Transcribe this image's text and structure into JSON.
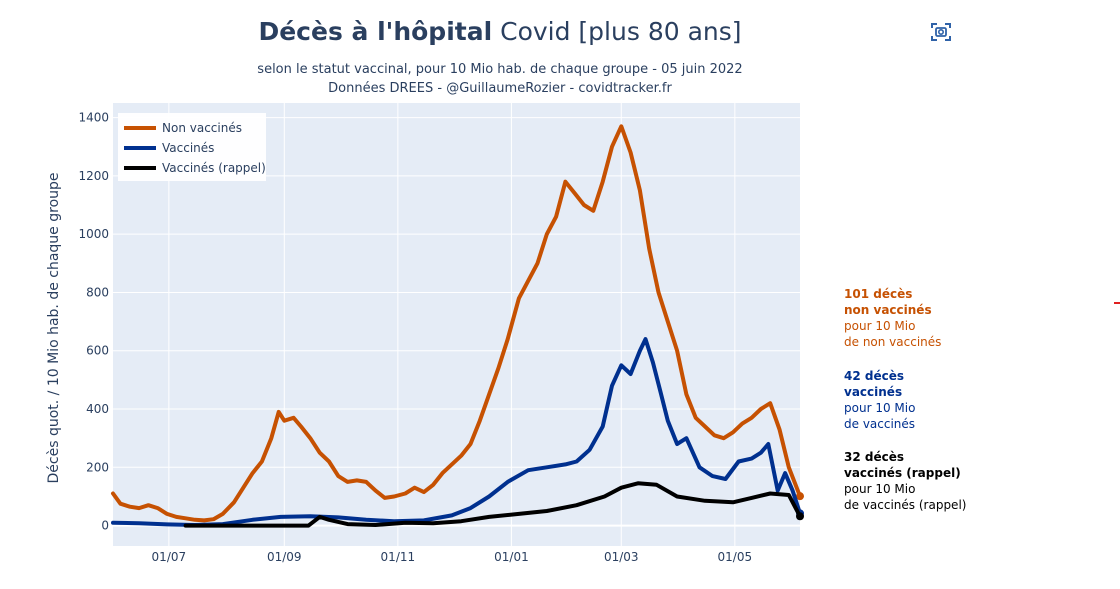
{
  "header": {
    "title_bold": "Décès à l'hôpital",
    "title_rest": "Covid [plus 80 ans]",
    "subtitle_line1": "selon le statut vaccinal, pour 10 Mio hab. de chaque groupe - 05 juin 2022",
    "subtitle_line2": "Données DREES - @GuillaumeRozier - covidtracker.fr"
  },
  "toolbar": {
    "camera_icon": "camera-icon"
  },
  "annotations": [
    {
      "line1": "101 décès",
      "line2": "non vaccinés",
      "line3": "pour 10 Mio",
      "line4": "de non vaccinés",
      "color": "#c65102"
    },
    {
      "line1": "42 décès",
      "line2": "vaccinés",
      "line3": "pour 10 Mio",
      "line4": "de vaccinés",
      "color": "#00308f"
    },
    {
      "line1": "32 décès",
      "line2": "vaccinés (rappel)",
      "line3": "pour 10 Mio",
      "line4": "de vaccinés (rappel)",
      "color": "#000000"
    }
  ],
  "chart_data": {
    "type": "line",
    "ylabel": "Décès quot. / 10 Mio hab. de chaque groupe",
    "xlabel": "",
    "x_range": [
      "2021-06-01",
      "2022-06-05"
    ],
    "ylim": [
      -70,
      1450
    ],
    "y_ticks": [
      0,
      200,
      400,
      600,
      800,
      1000,
      1200,
      1400
    ],
    "x_ticks": [
      {
        "date": "2021-07-01",
        "label": "01/07"
      },
      {
        "date": "2021-09-01",
        "label": "01/09"
      },
      {
        "date": "2021-11-01",
        "label": "01/11"
      },
      {
        "date": "2022-01-01",
        "label": "01/01"
      },
      {
        "date": "2022-03-01",
        "label": "01/03"
      },
      {
        "date": "2022-05-01",
        "label": "01/05"
      }
    ],
    "grid": true,
    "legend_position": "top-left",
    "series": [
      {
        "name": "Non vaccinés",
        "color": "#c65102",
        "points": [
          [
            "2021-06-01",
            110
          ],
          [
            "2021-06-05",
            75
          ],
          [
            "2021-06-10",
            65
          ],
          [
            "2021-06-15",
            60
          ],
          [
            "2021-06-20",
            70
          ],
          [
            "2021-06-25",
            60
          ],
          [
            "2021-06-30",
            40
          ],
          [
            "2021-07-05",
            30
          ],
          [
            "2021-07-10",
            25
          ],
          [
            "2021-07-15",
            20
          ],
          [
            "2021-07-20",
            18
          ],
          [
            "2021-07-25",
            22
          ],
          [
            "2021-07-30",
            40
          ],
          [
            "2021-08-05",
            80
          ],
          [
            "2021-08-10",
            130
          ],
          [
            "2021-08-15",
            180
          ],
          [
            "2021-08-20",
            220
          ],
          [
            "2021-08-25",
            300
          ],
          [
            "2021-08-29",
            390
          ],
          [
            "2021-09-01",
            360
          ],
          [
            "2021-09-06",
            370
          ],
          [
            "2021-09-10",
            340
          ],
          [
            "2021-09-15",
            300
          ],
          [
            "2021-09-20",
            250
          ],
          [
            "2021-09-25",
            220
          ],
          [
            "2021-09-30",
            170
          ],
          [
            "2021-10-05",
            150
          ],
          [
            "2021-10-10",
            155
          ],
          [
            "2021-10-15",
            150
          ],
          [
            "2021-10-20",
            120
          ],
          [
            "2021-10-25",
            95
          ],
          [
            "2021-10-30",
            100
          ],
          [
            "2021-11-05",
            110
          ],
          [
            "2021-11-10",
            130
          ],
          [
            "2021-11-15",
            115
          ],
          [
            "2021-11-20",
            140
          ],
          [
            "2021-11-25",
            180
          ],
          [
            "2021-11-30",
            210
          ],
          [
            "2021-12-05",
            240
          ],
          [
            "2021-12-10",
            280
          ],
          [
            "2021-12-15",
            360
          ],
          [
            "2021-12-20",
            450
          ],
          [
            "2021-12-25",
            540
          ],
          [
            "2021-12-30",
            640
          ],
          [
            "2022-01-05",
            780
          ],
          [
            "2022-01-10",
            840
          ],
          [
            "2022-01-15",
            900
          ],
          [
            "2022-01-20",
            1000
          ],
          [
            "2022-01-25",
            1060
          ],
          [
            "2022-01-30",
            1180
          ],
          [
            "2022-02-04",
            1140
          ],
          [
            "2022-02-09",
            1100
          ],
          [
            "2022-02-14",
            1080
          ],
          [
            "2022-02-19",
            1180
          ],
          [
            "2022-02-24",
            1300
          ],
          [
            "2022-03-01",
            1370
          ],
          [
            "2022-03-06",
            1280
          ],
          [
            "2022-03-11",
            1150
          ],
          [
            "2022-03-16",
            950
          ],
          [
            "2022-03-21",
            800
          ],
          [
            "2022-03-26",
            700
          ],
          [
            "2022-03-31",
            600
          ],
          [
            "2022-04-05",
            450
          ],
          [
            "2022-04-10",
            370
          ],
          [
            "2022-04-15",
            340
          ],
          [
            "2022-04-20",
            310
          ],
          [
            "2022-04-25",
            300
          ],
          [
            "2022-04-30",
            320
          ],
          [
            "2022-05-05",
            350
          ],
          [
            "2022-05-10",
            370
          ],
          [
            "2022-05-15",
            400
          ],
          [
            "2022-05-20",
            420
          ],
          [
            "2022-05-25",
            330
          ],
          [
            "2022-05-30",
            200
          ],
          [
            "2022-06-05",
            101
          ]
        ]
      },
      {
        "name": "Vaccinés",
        "color": "#00308f",
        "points": [
          [
            "2021-06-01",
            10
          ],
          [
            "2021-06-15",
            8
          ],
          [
            "2021-06-30",
            4
          ],
          [
            "2021-07-15",
            2
          ],
          [
            "2021-07-30",
            5
          ],
          [
            "2021-08-15",
            20
          ],
          [
            "2021-08-30",
            30
          ],
          [
            "2021-09-15",
            32
          ],
          [
            "2021-09-30",
            28
          ],
          [
            "2021-10-15",
            20
          ],
          [
            "2021-10-30",
            15
          ],
          [
            "2021-11-15",
            18
          ],
          [
            "2021-11-30",
            35
          ],
          [
            "2021-12-10",
            60
          ],
          [
            "2021-12-20",
            100
          ],
          [
            "2021-12-30",
            150
          ],
          [
            "2022-01-10",
            190
          ],
          [
            "2022-01-20",
            200
          ],
          [
            "2022-01-30",
            210
          ],
          [
            "2022-02-05",
            220
          ],
          [
            "2022-02-12",
            260
          ],
          [
            "2022-02-19",
            340
          ],
          [
            "2022-02-24",
            480
          ],
          [
            "2022-03-01",
            550
          ],
          [
            "2022-03-06",
            520
          ],
          [
            "2022-03-11",
            600
          ],
          [
            "2022-03-14",
            640
          ],
          [
            "2022-03-18",
            560
          ],
          [
            "2022-03-22",
            460
          ],
          [
            "2022-03-26",
            360
          ],
          [
            "2022-03-31",
            280
          ],
          [
            "2022-04-05",
            300
          ],
          [
            "2022-04-12",
            200
          ],
          [
            "2022-04-19",
            170
          ],
          [
            "2022-04-26",
            160
          ],
          [
            "2022-05-03",
            220
          ],
          [
            "2022-05-10",
            230
          ],
          [
            "2022-05-15",
            250
          ],
          [
            "2022-05-19",
            280
          ],
          [
            "2022-05-24",
            120
          ],
          [
            "2022-05-28",
            180
          ],
          [
            "2022-06-01",
            120
          ],
          [
            "2022-06-05",
            42
          ]
        ]
      },
      {
        "name": "Vaccinés (rappel)",
        "color": "#000000",
        "points": [
          [
            "2021-07-10",
            0
          ],
          [
            "2021-08-01",
            0
          ],
          [
            "2021-09-01",
            0
          ],
          [
            "2021-09-14",
            0
          ],
          [
            "2021-09-20",
            30
          ],
          [
            "2021-09-25",
            20
          ],
          [
            "2021-10-05",
            5
          ],
          [
            "2021-10-20",
            2
          ],
          [
            "2021-11-05",
            10
          ],
          [
            "2021-11-20",
            8
          ],
          [
            "2021-12-05",
            15
          ],
          [
            "2021-12-20",
            30
          ],
          [
            "2022-01-05",
            40
          ],
          [
            "2022-01-20",
            50
          ],
          [
            "2022-02-05",
            70
          ],
          [
            "2022-02-20",
            100
          ],
          [
            "2022-03-01",
            130
          ],
          [
            "2022-03-10",
            145
          ],
          [
            "2022-03-20",
            140
          ],
          [
            "2022-03-31",
            100
          ],
          [
            "2022-04-15",
            85
          ],
          [
            "2022-04-30",
            80
          ],
          [
            "2022-05-10",
            95
          ],
          [
            "2022-05-20",
            110
          ],
          [
            "2022-05-30",
            105
          ],
          [
            "2022-06-05",
            32
          ]
        ]
      }
    ]
  }
}
